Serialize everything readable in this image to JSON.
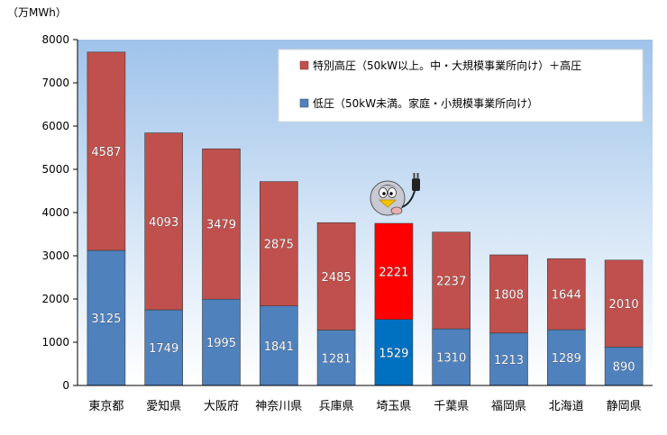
{
  "chart_data": {
    "type": "bar",
    "stacked": true,
    "unit_label": "（万MWh）",
    "categories": [
      "東京都",
      "愛知県",
      "大阪府",
      "神奈川県",
      "兵庫県",
      "埼玉県",
      "千葉県",
      "福岡県",
      "北海道",
      "静岡県"
    ],
    "highlight_category": "埼玉県",
    "series": [
      {
        "name": "低圧（50kW未満。家庭・小規模事業所向け）",
        "color": "#4f81bd",
        "highlight_color": "#0070c0",
        "values": [
          3125,
          1749,
          1995,
          1841,
          1281,
          1529,
          1310,
          1213,
          1289,
          890
        ]
      },
      {
        "name": "特別高圧（50kW以上。中・大規模事業所向け）＋高圧",
        "color": "#c0504d",
        "highlight_color": "#ff0000",
        "values": [
          4587,
          4093,
          3479,
          2875,
          2485,
          2221,
          2237,
          1808,
          1644,
          2010
        ]
      }
    ],
    "ylim": [
      0,
      8000
    ],
    "yticks": [
      0,
      1000,
      2000,
      3000,
      4000,
      5000,
      6000,
      7000,
      8000
    ],
    "legend_position": "top-right",
    "grid": false,
    "plot_background": "gradient-blue",
    "mascot_icon": "penguin-mascot-with-plug-icon"
  }
}
